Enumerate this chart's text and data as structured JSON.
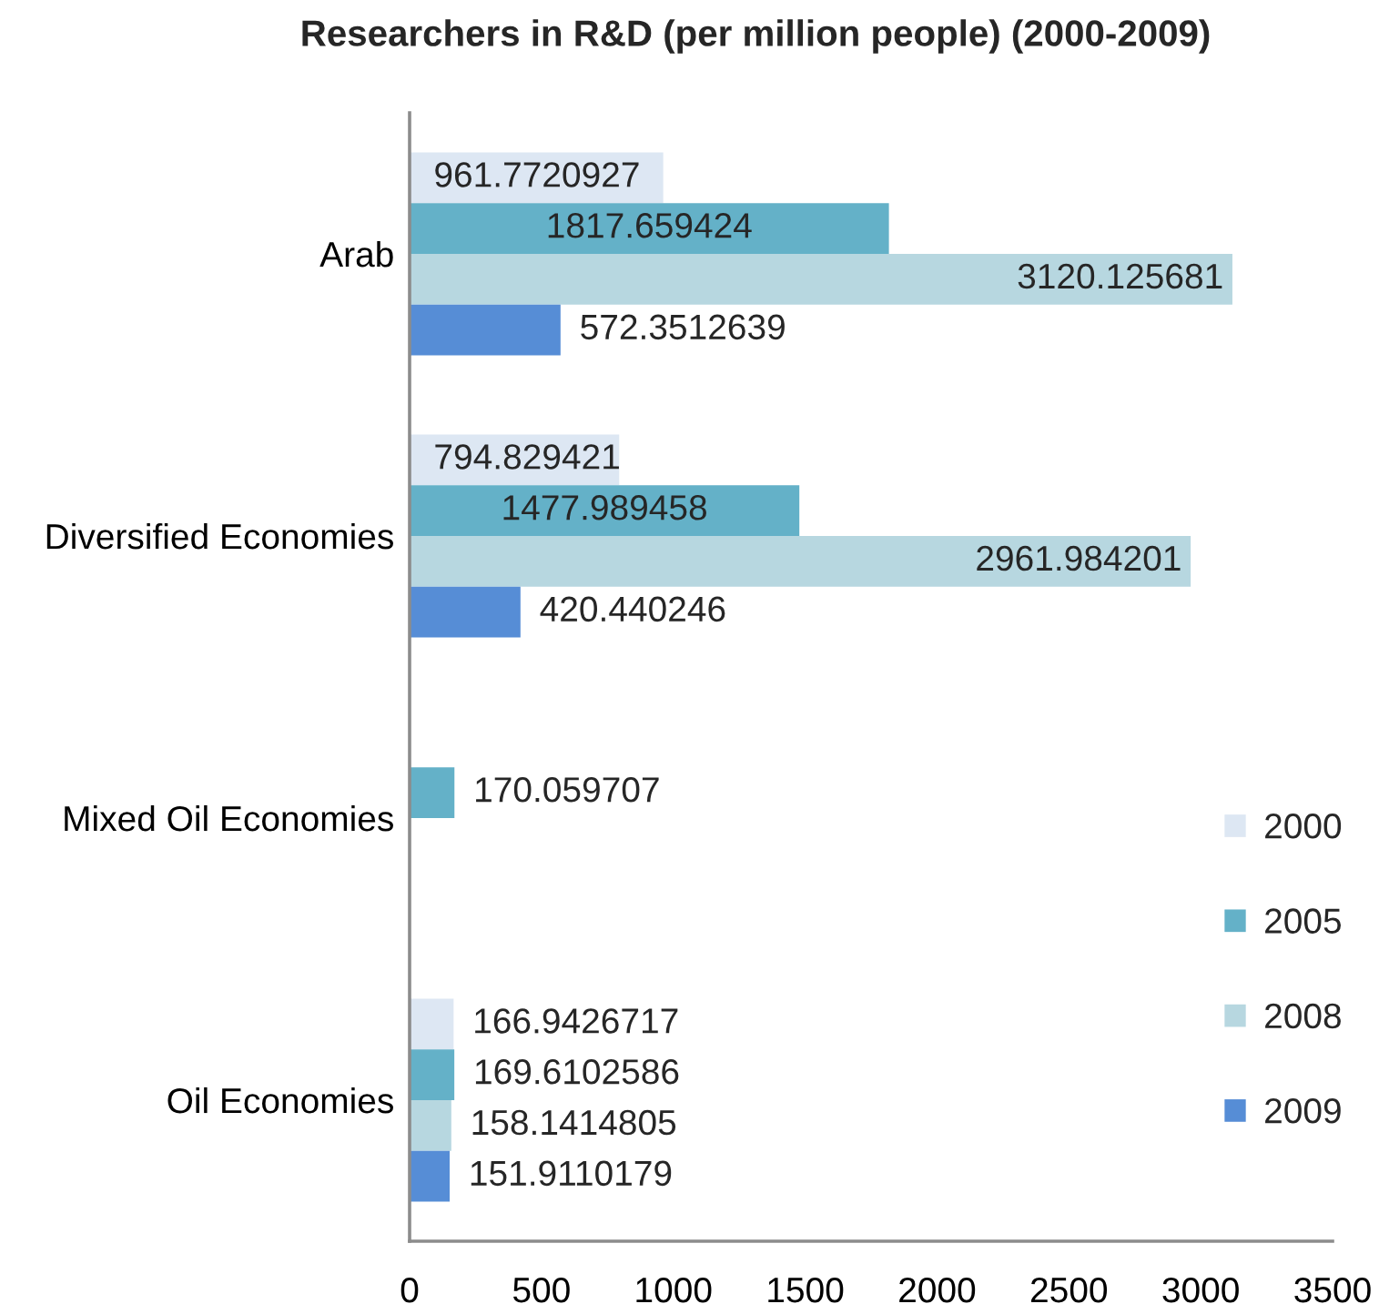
{
  "chart_data": {
    "type": "bar",
    "orientation": "horizontal",
    "title": "Researchers in R&D (per million people) (2000-2009)",
    "categories": [
      "Arab",
      "Diversified Economies",
      "Mixed Oil Economies",
      "Oil Economies"
    ],
    "series": [
      {
        "name": "2000",
        "color": "#dde7f3",
        "values": [
          961.7720927,
          794.829421,
          null,
          166.9426717
        ]
      },
      {
        "name": "2005",
        "color": "#64b1c8",
        "values": [
          1817.659424,
          1477.989458,
          170.059707,
          169.6102586
        ]
      },
      {
        "name": "2008",
        "color": "#b7d7e0",
        "values": [
          3120.125681,
          2961.984201,
          null,
          158.1414805
        ]
      },
      {
        "name": "2009",
        "color": "#568dd6",
        "values": [
          572.3512639,
          420.440246,
          null,
          151.9110179
        ]
      }
    ],
    "xlim": [
      0,
      3500
    ],
    "xticks": [
      0,
      500,
      1000,
      1500,
      2000,
      2500,
      3000,
      3500
    ],
    "data_labels": true,
    "legend": "bottom right",
    "grid": false
  }
}
